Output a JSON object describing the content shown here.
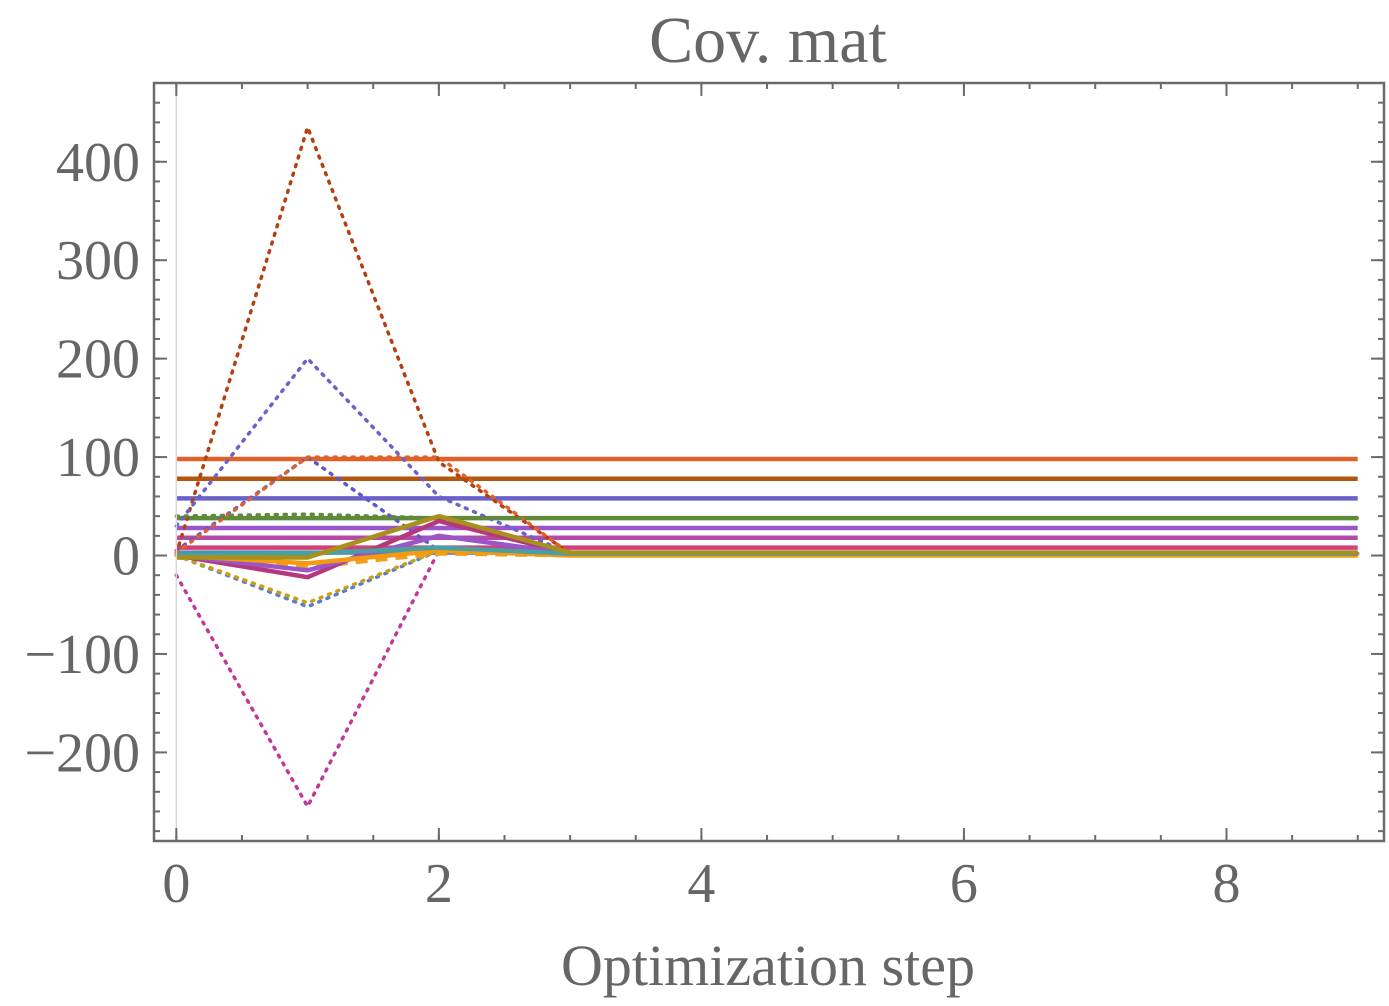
{
  "chart_data": {
    "type": "line",
    "title": "Cov. mat",
    "xlabel": "Optimization step",
    "ylabel": "",
    "xlim": [
      -0.17,
      9.2
    ],
    "ylim": [
      -290,
      480
    ],
    "xticks": [
      0,
      2,
      4,
      6,
      8
    ],
    "yticks": [
      -200,
      -100,
      0,
      100,
      200,
      300,
      400
    ],
    "ytick_labels": [
      "−200",
      "−100",
      "0",
      "100",
      "200",
      "300",
      "400"
    ],
    "grid": false,
    "legend": "none",
    "x": [
      0,
      1,
      2,
      3,
      4,
      5,
      6,
      7,
      8,
      9
    ],
    "series": [
      {
        "color": "#e0622a",
        "style": "solid",
        "values": [
          98,
          98,
          98,
          98,
          98,
          98,
          98,
          98,
          98,
          98
        ]
      },
      {
        "color": "#b5560f",
        "style": "solid",
        "values": [
          78,
          78,
          78,
          78,
          78,
          78,
          78,
          78,
          78,
          78
        ]
      },
      {
        "color": "#6b62c9",
        "style": "solid",
        "values": [
          58,
          58,
          58,
          58,
          58,
          58,
          58,
          58,
          58,
          58
        ]
      },
      {
        "color": "#5f8a3a",
        "style": "solid",
        "values": [
          38,
          38,
          38,
          38,
          38,
          38,
          38,
          38,
          38,
          38
        ]
      },
      {
        "color": "#9a55c9",
        "style": "solid",
        "values": [
          28,
          28,
          28,
          28,
          28,
          28,
          28,
          28,
          28,
          28
        ]
      },
      {
        "color": "#b44aa8",
        "style": "solid",
        "values": [
          18,
          18,
          18,
          18,
          18,
          18,
          18,
          18,
          18,
          18
        ]
      },
      {
        "color": "#d2407a",
        "style": "solid",
        "values": [
          8,
          8,
          8,
          8,
          8,
          8,
          8,
          8,
          8,
          8
        ]
      },
      {
        "color": "#4f8fb2",
        "style": "solid",
        "values": [
          3,
          3,
          3,
          3,
          3,
          3,
          3,
          3,
          3,
          3
        ]
      },
      {
        "color": "#b5400f",
        "style": "dotted",
        "values": [
          2,
          435,
          95,
          2,
          2,
          2,
          2,
          2,
          2,
          2
        ]
      },
      {
        "color": "#6b62c9",
        "style": "dotted",
        "values": [
          30,
          200,
          60,
          2,
          2,
          2,
          2,
          2,
          2,
          2
        ]
      },
      {
        "color": "#5a5acf",
        "style": "dotted",
        "values": [
          5,
          100,
          5,
          2,
          2,
          2,
          2,
          2,
          2,
          2
        ]
      },
      {
        "color": "#e0622a",
        "style": "dotted",
        "values": [
          3,
          100,
          100,
          2,
          2,
          2,
          2,
          2,
          2,
          2
        ]
      },
      {
        "color": "#5f8a3a",
        "style": "dotted",
        "values": [
          40,
          42,
          38,
          38,
          38,
          38,
          38,
          38,
          38,
          38
        ]
      },
      {
        "color": "#c0399a",
        "style": "dotted",
        "values": [
          -20,
          -255,
          5,
          2,
          2,
          2,
          2,
          2,
          2,
          2
        ]
      },
      {
        "color": "#5a7ccf",
        "style": "dotted",
        "values": [
          0,
          -52,
          5,
          2,
          2,
          2,
          2,
          2,
          2,
          2
        ]
      },
      {
        "color": "#c9a012",
        "style": "dotted",
        "values": [
          0,
          -48,
          5,
          2,
          2,
          2,
          2,
          2,
          2,
          2
        ]
      },
      {
        "color": "#f0a020",
        "style": "dashed",
        "values": [
          -2,
          -12,
          2,
          0,
          0,
          0,
          0,
          0,
          0,
          0
        ]
      },
      {
        "color": "#b4387a",
        "style": "solid",
        "values": [
          0,
          -22,
          35,
          2,
          2,
          2,
          2,
          2,
          2,
          2
        ]
      },
      {
        "color": "#9a55c9",
        "style": "solid",
        "values": [
          0,
          -15,
          20,
          2,
          2,
          2,
          2,
          2,
          2,
          2
        ]
      },
      {
        "color": "#f59a10",
        "style": "solid",
        "values": [
          0,
          -8,
          5,
          0,
          0,
          0,
          0,
          0,
          0,
          0
        ]
      },
      {
        "color": "#4aa0a0",
        "style": "solid",
        "values": [
          0,
          2,
          8,
          2,
          2,
          2,
          2,
          2,
          2,
          2
        ]
      },
      {
        "color": "#a8901a",
        "style": "solid",
        "values": [
          -2,
          -2,
          40,
          3,
          3,
          3,
          3,
          3,
          3,
          3
        ]
      }
    ]
  }
}
